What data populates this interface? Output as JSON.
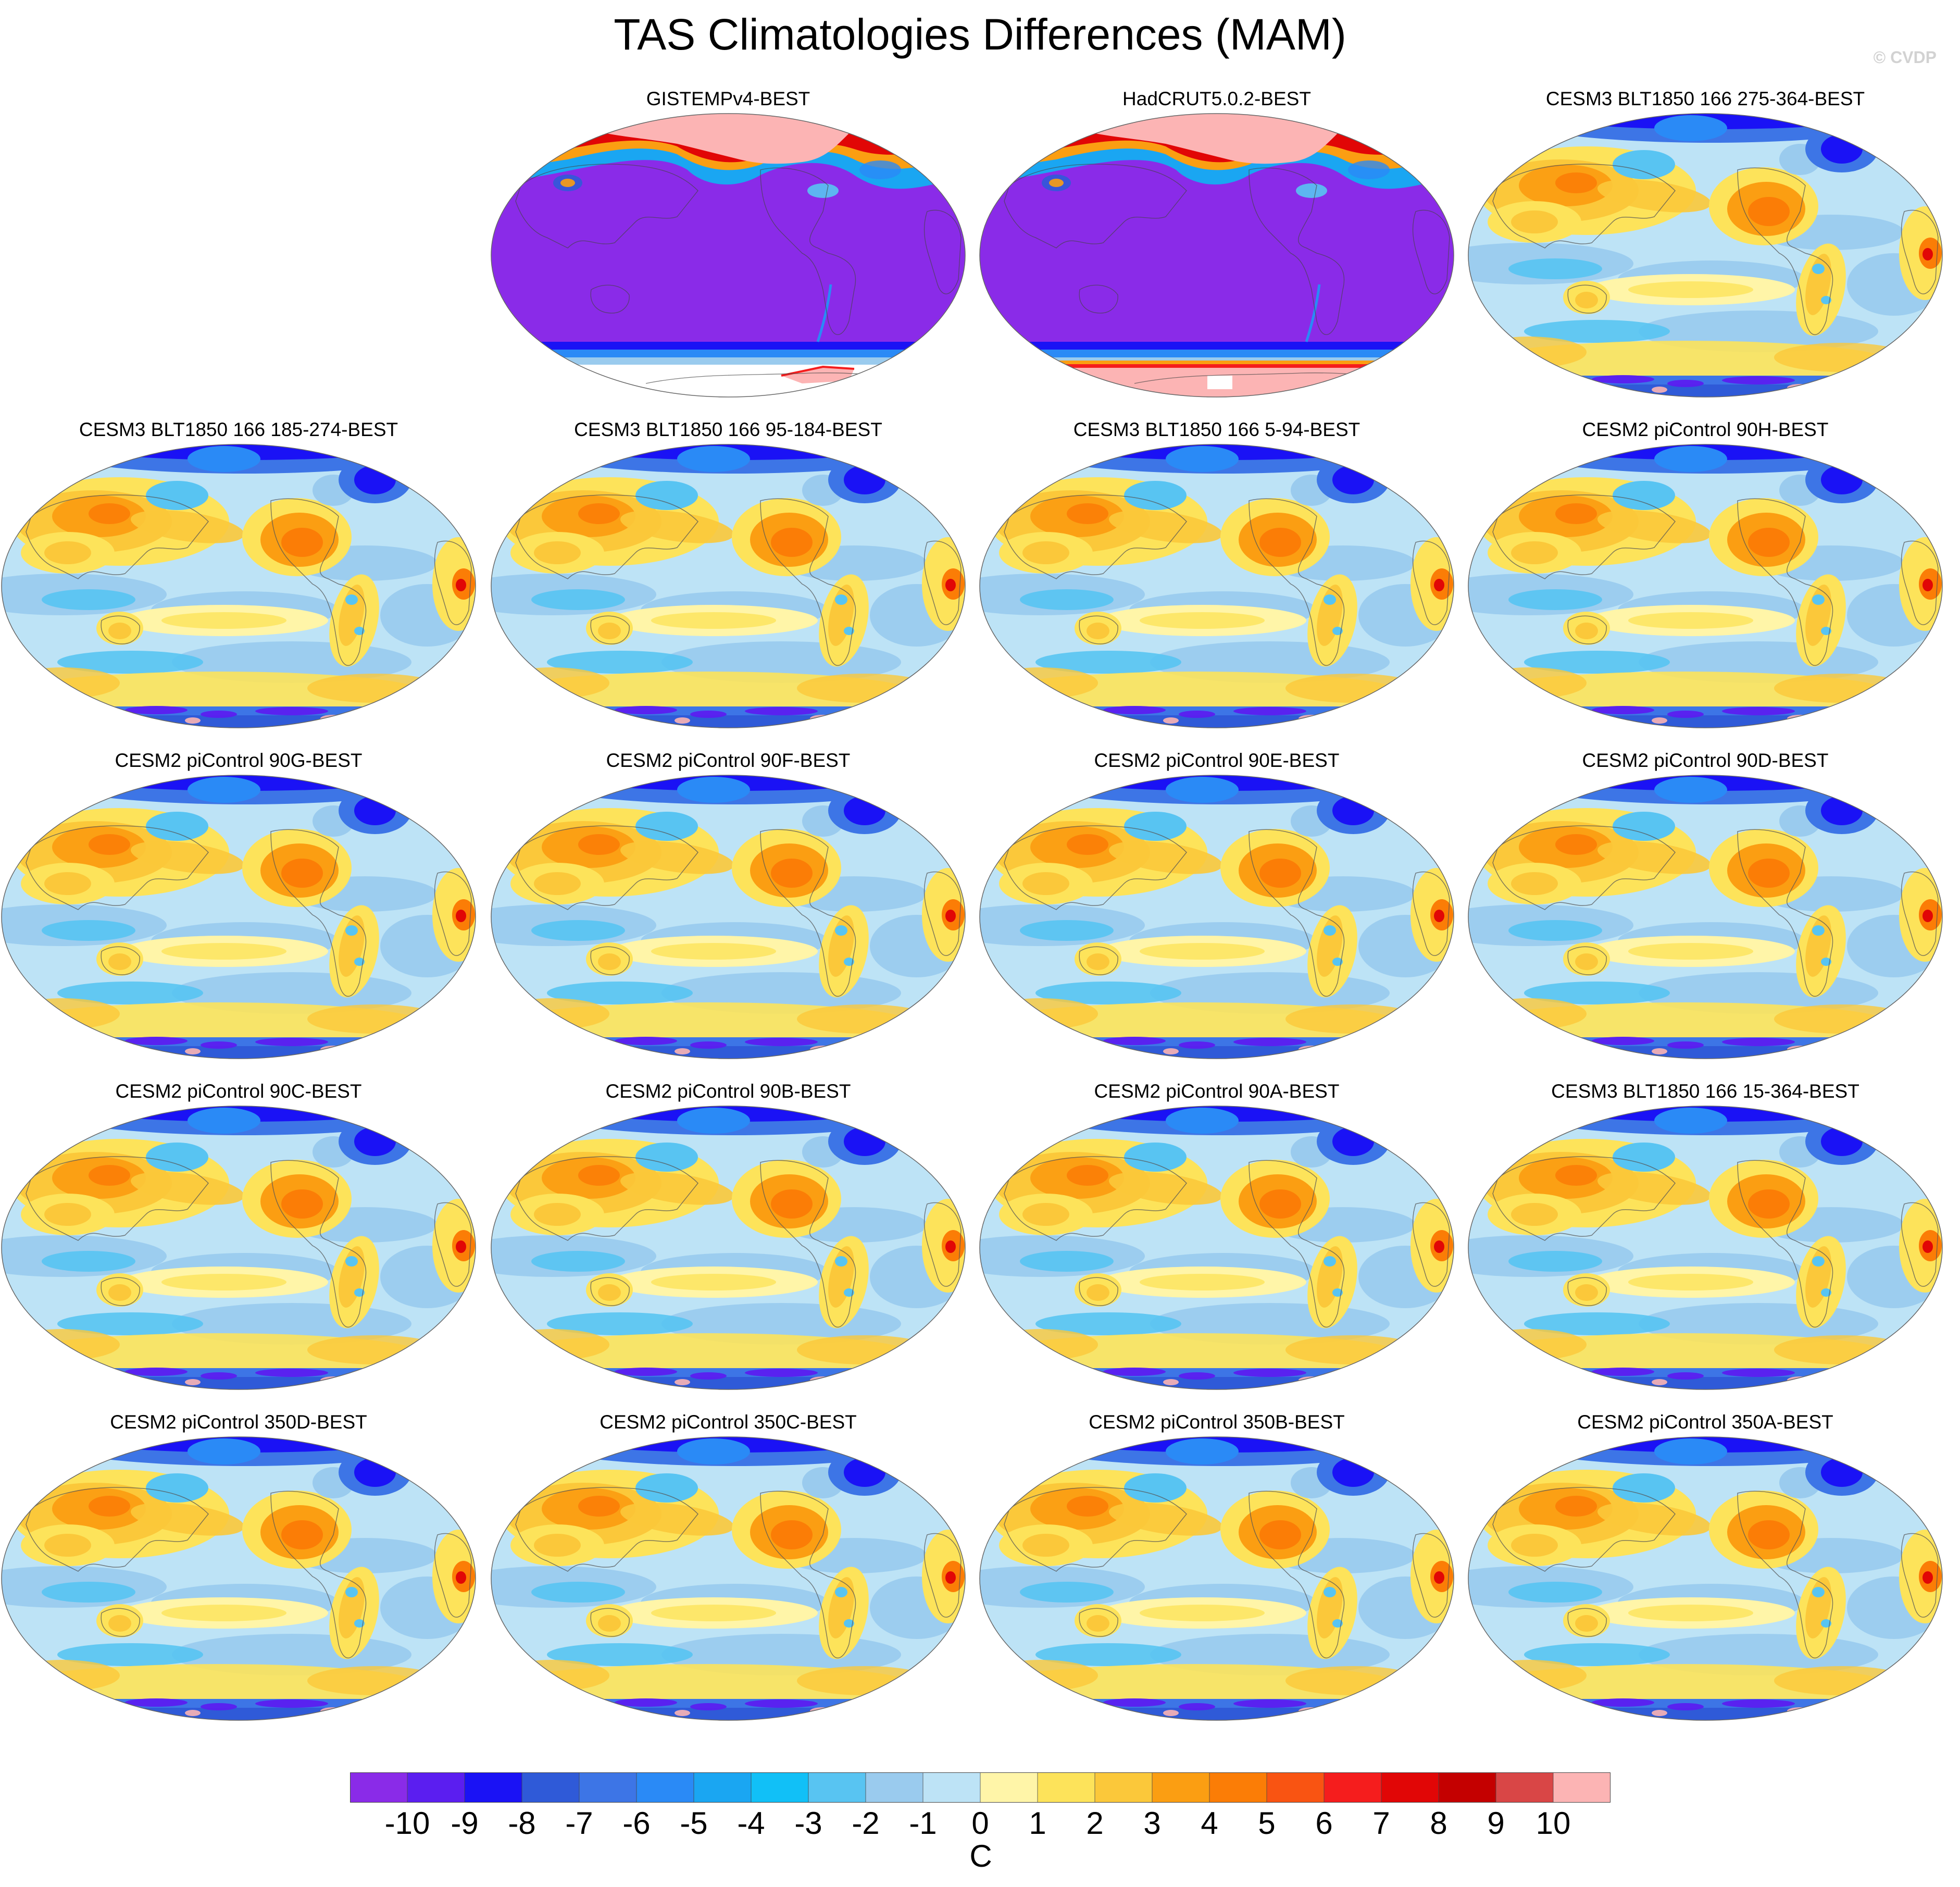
{
  "title": "TAS Climatologies Differences (MAM)",
  "watermark": "© CVDP",
  "colorbar": {
    "unit": "C",
    "labels": [
      "-10",
      "-9",
      "-8",
      "-7",
      "-6",
      "-5",
      "-4",
      "-3",
      "-2",
      "-1",
      "0",
      "1",
      "2",
      "3",
      "4",
      "5",
      "6",
      "7",
      "8",
      "9",
      "10"
    ],
    "colors": [
      "#8a2be8",
      "#5b1ef0",
      "#1a12f5",
      "#2f5ad8",
      "#3d75e6",
      "#2a8af6",
      "#1aa6f2",
      "#11c0f7",
      "#58c4f2",
      "#9acbee",
      "#bde3f6",
      "#fff5a8",
      "#fde35a",
      "#fbc83a",
      "#fb9e12",
      "#fb7d06",
      "#f95412",
      "#f51d1d",
      "#e10606",
      "#c40000",
      "#d94646",
      "#fcb4b4"
    ]
  },
  "panels": [
    {
      "title": "GISTEMPv4-BEST",
      "kind": "obs",
      "variant": "gistemp"
    },
    {
      "title": "HadCRUT5.0.2-BEST",
      "kind": "obs",
      "variant": "hadcrut"
    },
    {
      "title": "CESM3 BLT1850 166 275-364-BEST",
      "kind": "model"
    },
    {
      "title": "CESM3 BLT1850 166 185-274-BEST",
      "kind": "model"
    },
    {
      "title": "CESM3 BLT1850 166 95-184-BEST",
      "kind": "model"
    },
    {
      "title": "CESM3 BLT1850 166 5-94-BEST",
      "kind": "model"
    },
    {
      "title": "CESM2 piControl 90H-BEST",
      "kind": "model"
    },
    {
      "title": "CESM2 piControl 90G-BEST",
      "kind": "model"
    },
    {
      "title": "CESM2 piControl 90F-BEST",
      "kind": "model"
    },
    {
      "title": "CESM2 piControl 90E-BEST",
      "kind": "model"
    },
    {
      "title": "CESM2 piControl 90D-BEST",
      "kind": "model"
    },
    {
      "title": "CESM2 piControl 90C-BEST",
      "kind": "model"
    },
    {
      "title": "CESM2 piControl 90B-BEST",
      "kind": "model"
    },
    {
      "title": "CESM2 piControl 90A-BEST",
      "kind": "model"
    },
    {
      "title": "CESM3 BLT1850 166 15-364-BEST",
      "kind": "model"
    },
    {
      "title": "CESM2 piControl 350D-BEST",
      "kind": "model"
    },
    {
      "title": "CESM2 piControl 350C-BEST",
      "kind": "model"
    },
    {
      "title": "CESM2 piControl 350B-BEST",
      "kind": "model"
    },
    {
      "title": "CESM2 piControl 350A-BEST",
      "kind": "model"
    }
  ]
}
